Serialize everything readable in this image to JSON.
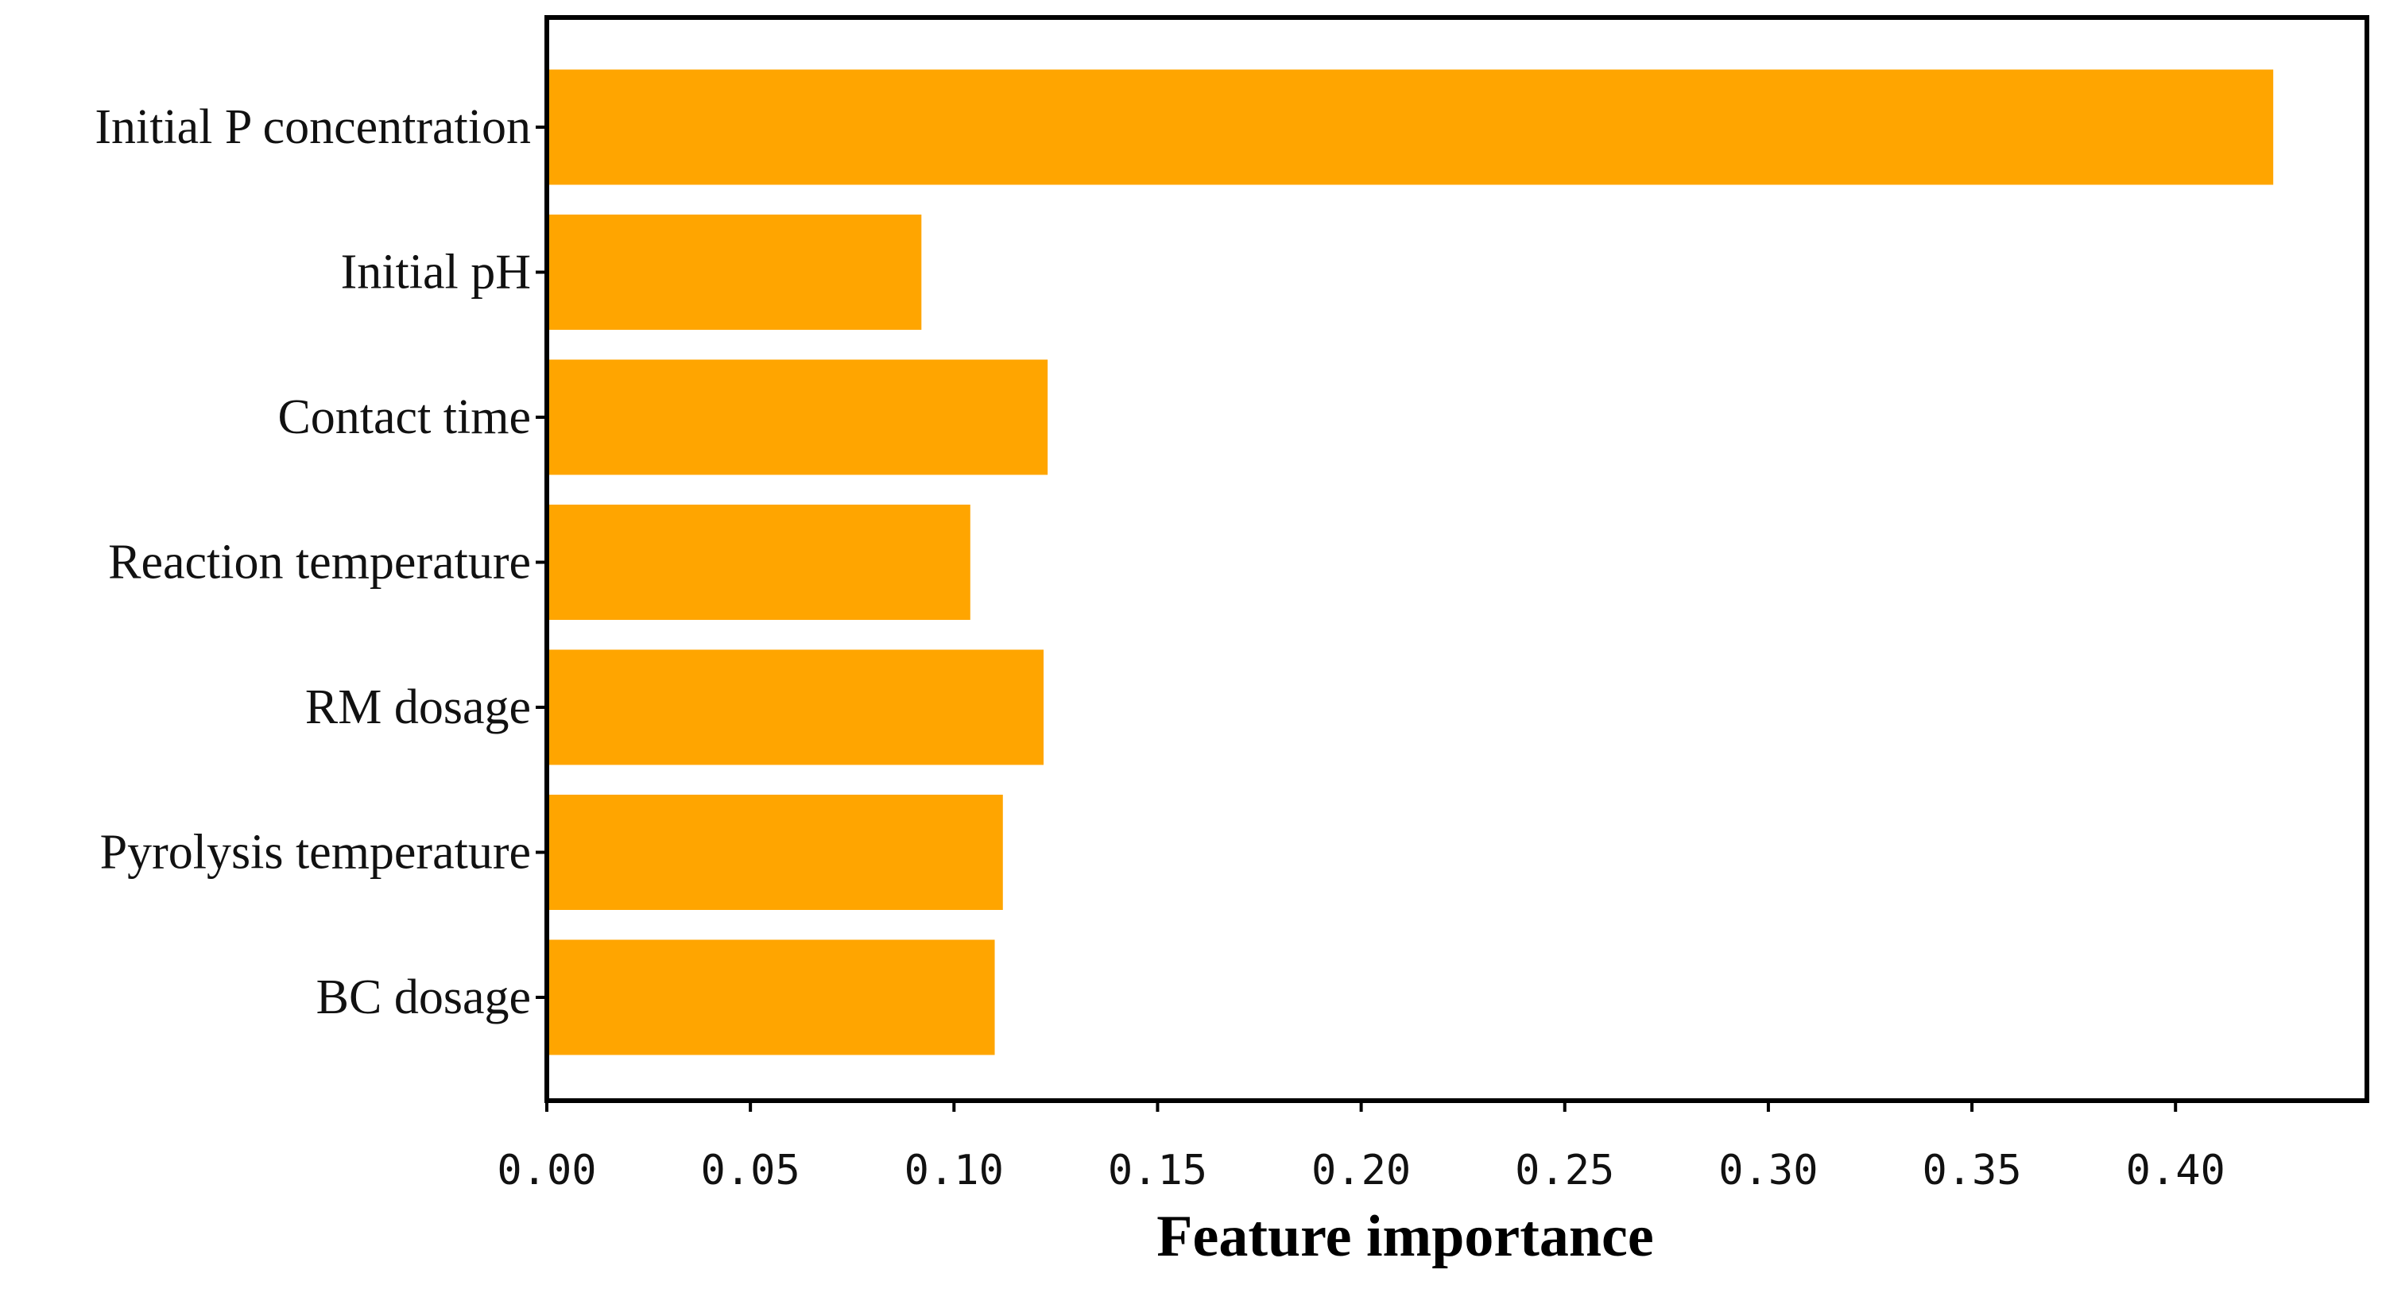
{
  "chart_data": {
    "type": "bar",
    "orientation": "horizontal",
    "categories": [
      "Initial P concentration",
      "Initial pH",
      "Contact time",
      "Reaction temperature",
      "RM dosage",
      "Pyrolysis temperature",
      "BC dosage"
    ],
    "values": [
      0.424,
      0.092,
      0.123,
      0.104,
      0.122,
      0.112,
      0.11
    ],
    "xlabel": "Feature importance",
    "ylabel": "",
    "title": "",
    "xlim": [
      0,
      0.447
    ],
    "xticks": [
      0.0,
      0.05,
      0.1,
      0.15,
      0.2,
      0.25,
      0.3,
      0.35,
      0.4
    ],
    "xtick_labels": [
      "0.00",
      "0.05",
      "0.10",
      "0.15",
      "0.20",
      "0.25",
      "0.30",
      "0.35",
      "0.40"
    ],
    "bar_color": "#FFA500",
    "grid": false,
    "legend": "none"
  }
}
